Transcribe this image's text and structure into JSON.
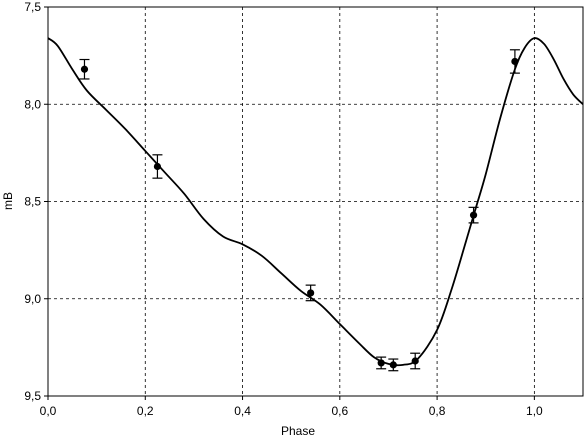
{
  "chart_data": {
    "type": "scatter",
    "xlabel": "Phase",
    "ylabel": "mB",
    "xlim": [
      0.0,
      1.1
    ],
    "ylim": [
      7.5,
      9.5
    ],
    "y_inverted": true,
    "grid": true,
    "grid_style": "dashed",
    "x_ticks": [
      "0,0",
      "0,2",
      "0,4",
      "0,6",
      "0,8",
      "1,0"
    ],
    "y_ticks": [
      "7,5",
      "8,0",
      "8,5",
      "9,0",
      "9,5"
    ],
    "series": [
      {
        "kind": "points",
        "marker": "filled-circle",
        "color": "#000000",
        "points": [
          {
            "x": 0.075,
            "y": 7.82,
            "err": 0.05
          },
          {
            "x": 0.225,
            "y": 8.32,
            "err": 0.06
          },
          {
            "x": 0.54,
            "y": 8.97,
            "err": 0.04
          },
          {
            "x": 0.685,
            "y": 9.33,
            "err": 0.03
          },
          {
            "x": 0.71,
            "y": 9.34,
            "err": 0.03
          },
          {
            "x": 0.755,
            "y": 9.32,
            "err": 0.04
          },
          {
            "x": 0.875,
            "y": 8.57,
            "err": 0.04
          },
          {
            "x": 0.96,
            "y": 7.78,
            "err": 0.06
          }
        ]
      },
      {
        "kind": "curve",
        "color": "#000000",
        "points": [
          {
            "x": 0.0,
            "y": 7.66
          },
          {
            "x": 0.02,
            "y": 7.7
          },
          {
            "x": 0.05,
            "y": 7.82
          },
          {
            "x": 0.08,
            "y": 7.93
          },
          {
            "x": 0.12,
            "y": 8.03
          },
          {
            "x": 0.16,
            "y": 8.13
          },
          {
            "x": 0.2,
            "y": 8.24
          },
          {
            "x": 0.24,
            "y": 8.35
          },
          {
            "x": 0.28,
            "y": 8.46
          },
          {
            "x": 0.32,
            "y": 8.59
          },
          {
            "x": 0.36,
            "y": 8.68
          },
          {
            "x": 0.4,
            "y": 8.72
          },
          {
            "x": 0.44,
            "y": 8.78
          },
          {
            "x": 0.48,
            "y": 8.87
          },
          {
            "x": 0.52,
            "y": 8.96
          },
          {
            "x": 0.56,
            "y": 9.03
          },
          {
            "x": 0.6,
            "y": 9.13
          },
          {
            "x": 0.64,
            "y": 9.23
          },
          {
            "x": 0.67,
            "y": 9.3
          },
          {
            "x": 0.7,
            "y": 9.335
          },
          {
            "x": 0.73,
            "y": 9.34
          },
          {
            "x": 0.76,
            "y": 9.31
          },
          {
            "x": 0.8,
            "y": 9.16
          },
          {
            "x": 0.83,
            "y": 8.95
          },
          {
            "x": 0.86,
            "y": 8.7
          },
          {
            "x": 0.88,
            "y": 8.53
          },
          {
            "x": 0.9,
            "y": 8.36
          },
          {
            "x": 0.93,
            "y": 8.07
          },
          {
            "x": 0.96,
            "y": 7.82
          },
          {
            "x": 0.98,
            "y": 7.71
          },
          {
            "x": 1.0,
            "y": 7.66
          },
          {
            "x": 1.02,
            "y": 7.69
          },
          {
            "x": 1.04,
            "y": 7.77
          },
          {
            "x": 1.06,
            "y": 7.87
          },
          {
            "x": 1.08,
            "y": 7.95
          },
          {
            "x": 1.1,
            "y": 8.0
          }
        ]
      }
    ]
  }
}
